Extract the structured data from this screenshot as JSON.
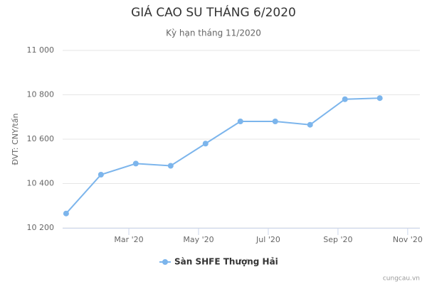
{
  "chart_data": {
    "type": "line",
    "title": "GIÁ CAO SU THÁNG 6/2020",
    "subtitle": "Kỳ hạn tháng 11/2020",
    "y_label": "ĐVT: CNY/tấn",
    "credit": "cungcau.vn",
    "x": [
      1.2,
      2.2,
      3.2,
      4.2,
      5.2,
      6.2,
      7.2,
      8.2,
      9.2,
      10.2
    ],
    "xlim": [
      1.1,
      11.35
    ],
    "xticks": [
      {
        "value": 3,
        "label": "Mar '20"
      },
      {
        "value": 5,
        "label": "May '20"
      },
      {
        "value": 7,
        "label": "Jul '20"
      },
      {
        "value": 9,
        "label": "Sep '20"
      },
      {
        "value": 11,
        "label": "Nov '20"
      }
    ],
    "ylim": [
      10200,
      11000
    ],
    "yticks": [
      {
        "value": 10200,
        "label": "10 200"
      },
      {
        "value": 10400,
        "label": "10 400"
      },
      {
        "value": 10600,
        "label": "10 600"
      },
      {
        "value": 10800,
        "label": "10 800"
      },
      {
        "value": 11000,
        "label": "11 000"
      }
    ],
    "grid": true,
    "legend": "bottom",
    "series": [
      {
        "name": "Sàn SHFE Thượng Hải",
        "color": "#7cb5ec",
        "values": [
          10265,
          10440,
          10490,
          10480,
          10580,
          10680,
          10680,
          10665,
          10780,
          10785
        ]
      }
    ]
  }
}
